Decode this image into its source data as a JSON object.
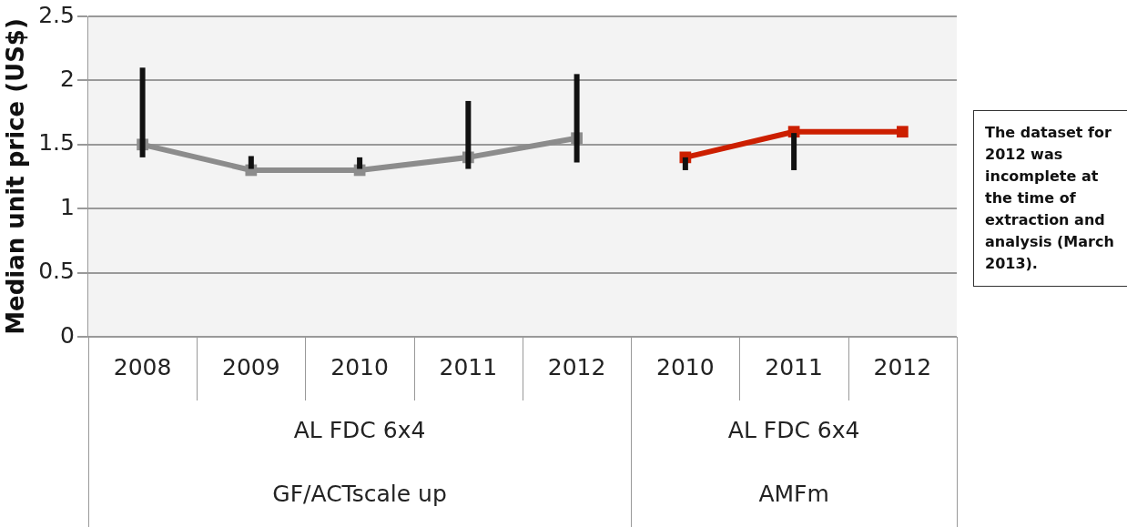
{
  "chart_data": {
    "type": "line",
    "ylabel": "Median unit price (US$)",
    "categories": [
      "2008",
      "2009",
      "2010",
      "2011",
      "2012",
      "2010",
      "2011",
      "2012"
    ],
    "series": [
      {
        "color": "#8c8c8c",
        "values": [
          1.5,
          1.3,
          1.3,
          1.4,
          1.55,
          null,
          null,
          null
        ],
        "errors": [
          [
            1.4,
            2.1
          ],
          [
            1.31,
            1.41
          ],
          [
            1.31,
            1.4
          ],
          [
            1.31,
            1.84
          ],
          [
            1.36,
            2.05
          ],
          null,
          null,
          null
        ]
      },
      {
        "color": "#cc1f00",
        "values": [
          null,
          null,
          null,
          null,
          null,
          1.4,
          1.6,
          1.6
        ],
        "errors": [
          null,
          null,
          null,
          null,
          null,
          [
            1.3,
            1.4
          ],
          [
            1.3,
            1.59
          ],
          null
        ]
      }
    ],
    "ylim": [
      0,
      2.5
    ],
    "yticks": [
      0,
      0.5,
      1,
      1.5,
      2,
      2.5
    ],
    "grid": "y",
    "legend": false,
    "marker": "square",
    "annotations": [
      "AL FDC 6x4",
      "AL FDC 6x4",
      "GF/ACTscale up",
      "AMFm",
      "The dataset for 2012 was incomplete at the time of extraction and analysis (March 2013)."
    ]
  }
}
